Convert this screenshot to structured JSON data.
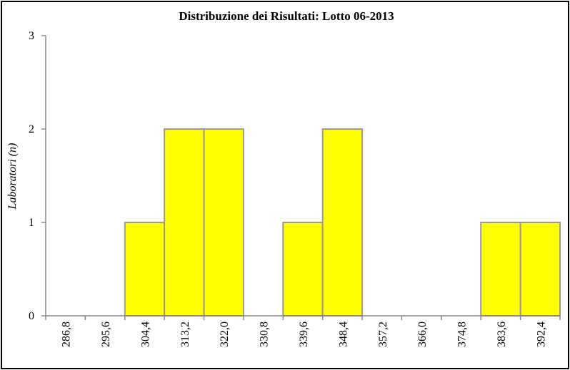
{
  "chart_data": {
    "type": "bar",
    "title": "Distribuzione dei Risultati: Lotto 06-2013",
    "y_label": "Laboratori (n)",
    "categories": [
      "286,8",
      "295,6",
      "304,4",
      "313,2",
      "322,0",
      "330,8",
      "339,6",
      "348,4",
      "357,2",
      "366,0",
      "374,8",
      "383,6",
      "392,4"
    ],
    "values": [
      0,
      0,
      1,
      2,
      2,
      0,
      1,
      2,
      0,
      0,
      0,
      1,
      1
    ],
    "color": "#ffff00",
    "ylim": [
      0,
      3
    ],
    "yticks": [
      0,
      1,
      2,
      3
    ],
    "grid": false
  }
}
